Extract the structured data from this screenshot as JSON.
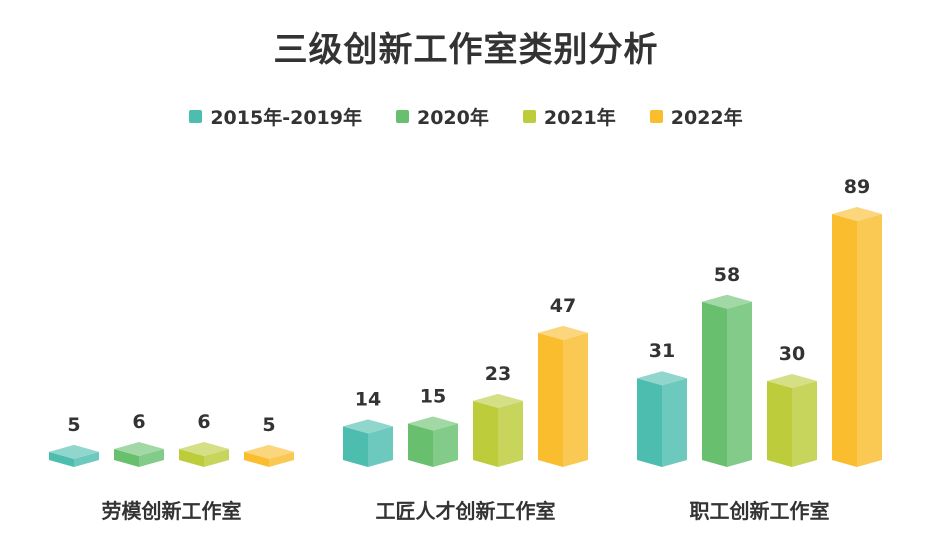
{
  "chart_data": {
    "type": "bar",
    "title": "三级创新工作室类别分析",
    "categories": [
      "劳模创新工作室",
      "工匠人才创新工作室",
      "职工创新工作室"
    ],
    "series": [
      {
        "name": "2015年-2019年",
        "color": "#4dbdaf",
        "values": [
          5,
          14,
          31
        ]
      },
      {
        "name": "2020年",
        "color": "#68c06e",
        "values": [
          6,
          15,
          58
        ]
      },
      {
        "name": "2021年",
        "color": "#bccc3a",
        "values": [
          6,
          23,
          30
        ]
      },
      {
        "name": "2022年",
        "color": "#f9bd2e",
        "values": [
          5,
          47,
          89
        ]
      }
    ],
    "ylim": [
      0,
      100
    ],
    "grid": false,
    "legend_position": "top",
    "data_labels": true,
    "style": "3d-column"
  }
}
